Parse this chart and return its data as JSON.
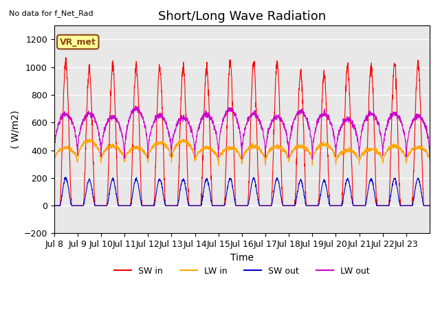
{
  "title": "Short/Long Wave Radiation",
  "xlabel": "Time",
  "ylabel": "( W/m2)",
  "top_left_text": "No data for f_Net_Rad",
  "legend_label_text": "VR_met",
  "ylim": [
    -200,
    1300
  ],
  "yticks": [
    -200,
    0,
    200,
    400,
    600,
    800,
    1000,
    1200
  ],
  "xticklabels": [
    "Jul 8",
    "Jul 9",
    "Jul 10",
    "Jul 11",
    "Jul 12",
    "Jul 13",
    "Jul 14",
    "Jul 15",
    "Jul 16",
    "Jul 17",
    "Jul 18",
    "Jul 19",
    "Jul 20",
    "Jul 21",
    "Jul 22",
    "Jul 23"
  ],
  "series_colors": {
    "SW_in": "#ff0000",
    "LW_in": "#ffa500",
    "SW_out": "#0000cc",
    "LW_out": "#cc00cc"
  },
  "series_labels": {
    "SW_in": "SW in",
    "LW_in": "LW in",
    "SW_out": "SW out",
    "LW_out": "LW out"
  },
  "SW_in_peaks": [
    1040,
    980,
    1000,
    1010,
    1010,
    1000,
    990,
    1030,
    1025,
    1020,
    970,
    960,
    1010,
    1010,
    1020,
    1020
  ],
  "n_days": 16,
  "pts_per_day": 144,
  "background_color": "#ffffff",
  "plot_bg_color": "#e8e8e8",
  "grid_color": "#ffffff",
  "title_fontsize": 13,
  "label_fontsize": 10,
  "tick_fontsize": 9
}
